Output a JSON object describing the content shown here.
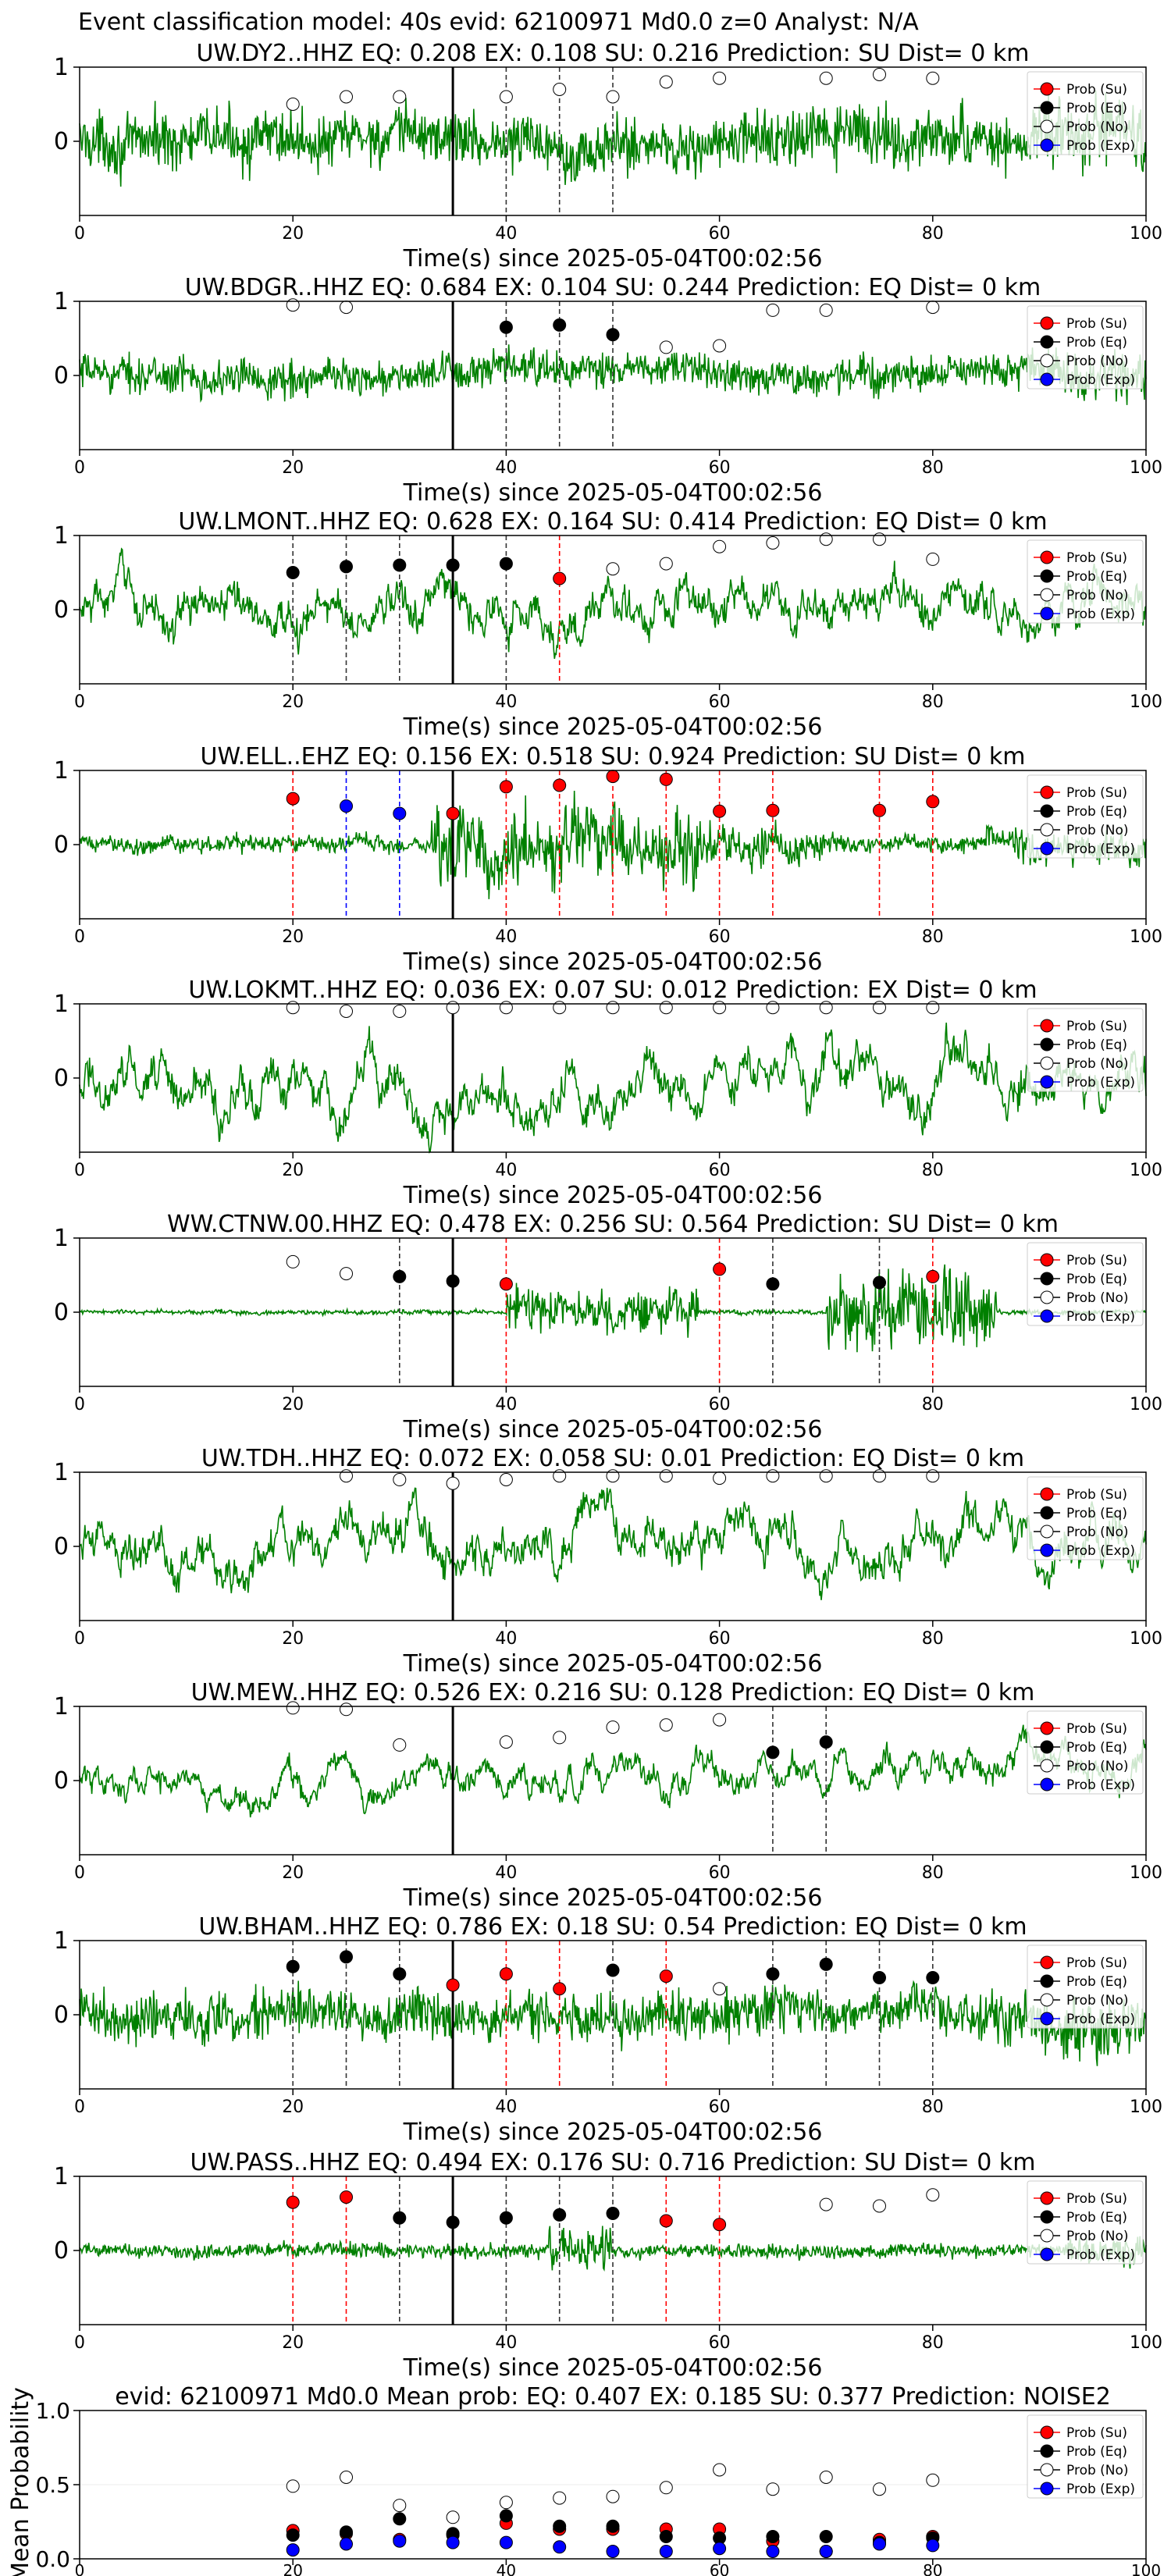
{
  "figure": {
    "suptitle": "Event classification model: 40s evid: 62100971 Md0.0 z=0 Analyst: N/A"
  },
  "legend_labels": [
    "Prob (Su)",
    "Prob (Eq)",
    "Prob (No)",
    "Prob (Exp)"
  ],
  "class_colors": {
    "su": "#ff0000",
    "eq": "#000000",
    "no": "#ffffff",
    "exp": "#0000ff"
  },
  "waveform_color": "#008000",
  "common": {
    "xlabel": "Time(s) since 2025-05-04T00:02:56",
    "xticks": [
      "0",
      "20",
      "40",
      "60",
      "80",
      "100"
    ],
    "yticks": [
      "0",
      "1"
    ],
    "xlim": [
      0,
      100
    ],
    "ylim": [
      -1,
      1
    ],
    "marker_times": [
      20,
      25,
      30,
      35,
      40,
      45,
      50,
      55,
      60,
      65,
      70,
      75,
      80
    ],
    "origin_time": 35
  },
  "chart_data": [
    {
      "type": "line",
      "title": "UW.DY2..HHZ   EQ: 0.208  EX: 0.108  SU: 0.216   Prediction: SU    Dist= 0 km",
      "amplitude": 0.7,
      "style": "noise",
      "probs": {
        "su": [],
        "eq": [],
        "exp": [],
        "no": [
          [
            20,
            0.5
          ],
          [
            25,
            0.6
          ],
          [
            30,
            0.6
          ],
          [
            40,
            0.6
          ],
          [
            45,
            0.7
          ],
          [
            50,
            0.6
          ],
          [
            55,
            0.8
          ],
          [
            60,
            0.85
          ],
          [
            70,
            0.85
          ],
          [
            75,
            0.9
          ],
          [
            80,
            0.85
          ]
        ]
      },
      "picks": [
        {
          "x": 40,
          "cls": "eq"
        },
        {
          "x": 45,
          "cls": "eq"
        },
        {
          "x": 50,
          "cls": "eq"
        }
      ]
    },
    {
      "type": "line",
      "title": "UW.BDGR..HHZ   EQ: 0.684  EX: 0.104  SU: 0.244   Prediction: EQ    Dist= 0 km",
      "amplitude": 0.45,
      "style": "noise",
      "probs": {
        "su": [],
        "eq": [
          [
            40,
            0.65
          ],
          [
            45,
            0.68
          ],
          [
            50,
            0.55
          ]
        ],
        "exp": [],
        "no": [
          [
            20,
            0.95
          ],
          [
            25,
            0.92
          ],
          [
            55,
            0.38
          ],
          [
            60,
            0.4
          ],
          [
            65,
            0.88
          ],
          [
            70,
            0.88
          ],
          [
            80,
            0.92
          ]
        ]
      },
      "picks": [
        {
          "x": 40,
          "cls": "eq"
        },
        {
          "x": 45,
          "cls": "eq"
        },
        {
          "x": 50,
          "cls": "eq"
        }
      ]
    },
    {
      "type": "line",
      "title": "UW.LMONT..HHZ   EQ: 0.628  EX: 0.164  SU: 0.414   Prediction: EQ    Dist= 0 km",
      "amplitude": 0.8,
      "style": "lowfreq",
      "probs": {
        "su": [
          [
            45,
            0.42
          ]
        ],
        "eq": [
          [
            20,
            0.5
          ],
          [
            25,
            0.58
          ],
          [
            30,
            0.6
          ],
          [
            35,
            0.6
          ],
          [
            40,
            0.62
          ]
        ],
        "exp": [],
        "no": [
          [
            50,
            0.55
          ],
          [
            55,
            0.62
          ],
          [
            60,
            0.85
          ],
          [
            65,
            0.9
          ],
          [
            70,
            0.95
          ],
          [
            75,
            0.95
          ],
          [
            80,
            0.68
          ]
        ]
      },
      "picks": [
        {
          "x": 20,
          "cls": "eq"
        },
        {
          "x": 25,
          "cls": "eq"
        },
        {
          "x": 30,
          "cls": "eq"
        },
        {
          "x": 40,
          "cls": "eq"
        },
        {
          "x": 45,
          "cls": "su"
        }
      ]
    },
    {
      "type": "line",
      "title": "UW.ELL..EHZ   EQ: 0.156  EX: 0.518  SU: 0.924   Prediction: SU    Dist= 0 km",
      "amplitude": 0.9,
      "style": "burst_mid",
      "probs": {
        "su": [
          [
            20,
            0.62
          ],
          [
            35,
            0.42
          ],
          [
            40,
            0.78
          ],
          [
            45,
            0.8
          ],
          [
            50,
            0.92
          ],
          [
            55,
            0.88
          ],
          [
            60,
            0.45
          ],
          [
            65,
            0.46
          ],
          [
            75,
            0.46
          ],
          [
            80,
            0.58
          ]
        ],
        "eq": [],
        "exp": [
          [
            25,
            0.52
          ],
          [
            30,
            0.42
          ]
        ],
        "no": []
      },
      "picks": [
        {
          "x": 20,
          "cls": "su"
        },
        {
          "x": 25,
          "cls": "exp"
        },
        {
          "x": 30,
          "cls": "exp"
        },
        {
          "x": 40,
          "cls": "su"
        },
        {
          "x": 45,
          "cls": "su"
        },
        {
          "x": 50,
          "cls": "su"
        },
        {
          "x": 55,
          "cls": "su"
        },
        {
          "x": 60,
          "cls": "su"
        },
        {
          "x": 65,
          "cls": "su"
        },
        {
          "x": 75,
          "cls": "su"
        },
        {
          "x": 80,
          "cls": "su"
        }
      ]
    },
    {
      "type": "line",
      "title": "UW.LOKMT..HHZ   EQ: 0.036  EX: 0.07  SU: 0.012   Prediction: EX    Dist= 0 km",
      "amplitude": 0.85,
      "style": "lowfreq",
      "probs": {
        "su": [],
        "eq": [],
        "exp": [],
        "no": [
          [
            20,
            0.95
          ],
          [
            25,
            0.9
          ],
          [
            30,
            0.9
          ],
          [
            35,
            0.95
          ],
          [
            40,
            0.95
          ],
          [
            45,
            0.95
          ],
          [
            50,
            0.95
          ],
          [
            55,
            0.95
          ],
          [
            60,
            0.95
          ],
          [
            65,
            0.95
          ],
          [
            70,
            0.95
          ],
          [
            75,
            0.95
          ],
          [
            80,
            0.95
          ]
        ]
      },
      "picks": []
    },
    {
      "type": "line",
      "title": "WW.CTNW.00.HHZ   EQ: 0.478  EX: 0.256  SU: 0.564   Prediction: SU    Dist= 0 km",
      "amplitude": 0.9,
      "style": "events",
      "probs": {
        "su": [
          [
            40,
            0.38
          ],
          [
            60,
            0.58
          ],
          [
            80,
            0.48
          ]
        ],
        "eq": [
          [
            30,
            0.48
          ],
          [
            35,
            0.42
          ],
          [
            65,
            0.38
          ],
          [
            75,
            0.4
          ]
        ],
        "exp": [],
        "no": [
          [
            20,
            0.68
          ],
          [
            25,
            0.52
          ]
        ]
      },
      "picks": [
        {
          "x": 30,
          "cls": "eq"
        },
        {
          "x": 40,
          "cls": "su"
        },
        {
          "x": 60,
          "cls": "su"
        },
        {
          "x": 65,
          "cls": "eq"
        },
        {
          "x": 75,
          "cls": "eq"
        },
        {
          "x": 80,
          "cls": "su"
        }
      ]
    },
    {
      "type": "line",
      "title": "UW.TDH..HHZ   EQ: 0.072  EX: 0.058  SU: 0.01   Prediction: EQ    Dist= 0 km",
      "amplitude": 0.8,
      "style": "lowfreq",
      "probs": {
        "su": [],
        "eq": [],
        "exp": [],
        "no": [
          [
            25,
            0.95
          ],
          [
            30,
            0.9
          ],
          [
            35,
            0.85
          ],
          [
            40,
            0.9
          ],
          [
            45,
            0.95
          ],
          [
            50,
            0.95
          ],
          [
            55,
            0.95
          ],
          [
            60,
            0.92
          ],
          [
            65,
            0.95
          ],
          [
            70,
            0.95
          ],
          [
            75,
            0.95
          ],
          [
            80,
            0.95
          ]
        ]
      },
      "picks": []
    },
    {
      "type": "line",
      "title": "UW.MEW..HHZ   EQ: 0.526  EX: 0.216  SU: 0.128   Prediction: EQ    Dist= 0 km",
      "amplitude": 0.55,
      "style": "lowfreq",
      "probs": {
        "su": [],
        "eq": [
          [
            65,
            0.38
          ],
          [
            70,
            0.52
          ]
        ],
        "exp": [],
        "no": [
          [
            20,
            0.98
          ],
          [
            25,
            0.96
          ],
          [
            30,
            0.48
          ],
          [
            40,
            0.52
          ],
          [
            45,
            0.58
          ],
          [
            50,
            0.72
          ],
          [
            55,
            0.75
          ],
          [
            60,
            0.82
          ]
        ]
      },
      "picks": [
        {
          "x": 65,
          "cls": "eq"
        },
        {
          "x": 70,
          "cls": "eq"
        }
      ]
    },
    {
      "type": "line",
      "title": "UW.BHAM..HHZ   EQ: 0.786  EX: 0.18  SU: 0.54   Prediction: EQ    Dist= 0 km",
      "amplitude": 0.6,
      "style": "noise",
      "probs": {
        "su": [
          [
            35,
            0.4
          ],
          [
            40,
            0.55
          ],
          [
            45,
            0.35
          ],
          [
            55,
            0.52
          ]
        ],
        "eq": [
          [
            20,
            0.65
          ],
          [
            25,
            0.78
          ],
          [
            30,
            0.55
          ],
          [
            50,
            0.6
          ],
          [
            65,
            0.55
          ],
          [
            70,
            0.68
          ],
          [
            75,
            0.5
          ],
          [
            80,
            0.5
          ]
        ],
        "exp": [],
        "no": [
          [
            60,
            0.35
          ]
        ]
      },
      "picks": [
        {
          "x": 20,
          "cls": "eq"
        },
        {
          "x": 25,
          "cls": "eq"
        },
        {
          "x": 30,
          "cls": "eq"
        },
        {
          "x": 40,
          "cls": "su"
        },
        {
          "x": 45,
          "cls": "su"
        },
        {
          "x": 50,
          "cls": "eq"
        },
        {
          "x": 55,
          "cls": "su"
        },
        {
          "x": 65,
          "cls": "eq"
        },
        {
          "x": 70,
          "cls": "eq"
        },
        {
          "x": 75,
          "cls": "eq"
        },
        {
          "x": 80,
          "cls": "eq"
        }
      ]
    },
    {
      "type": "line",
      "title": "UW.PASS..HHZ   EQ: 0.494  EX: 0.176  SU: 0.716   Prediction: SU    Dist= 0 km",
      "amplitude": 0.5,
      "style": "noise_burst",
      "probs": {
        "su": [
          [
            20,
            0.65
          ],
          [
            25,
            0.72
          ],
          [
            55,
            0.4
          ],
          [
            60,
            0.35
          ]
        ],
        "eq": [
          [
            30,
            0.44
          ],
          [
            35,
            0.38
          ],
          [
            40,
            0.44
          ],
          [
            45,
            0.48
          ],
          [
            50,
            0.5
          ]
        ],
        "exp": [],
        "no": [
          [
            70,
            0.62
          ],
          [
            75,
            0.6
          ],
          [
            80,
            0.75
          ]
        ]
      },
      "picks": [
        {
          "x": 20,
          "cls": "su"
        },
        {
          "x": 25,
          "cls": "su"
        },
        {
          "x": 30,
          "cls": "eq"
        },
        {
          "x": 40,
          "cls": "eq"
        },
        {
          "x": 45,
          "cls": "eq"
        },
        {
          "x": 50,
          "cls": "eq"
        },
        {
          "x": 55,
          "cls": "su"
        },
        {
          "x": 60,
          "cls": "su"
        }
      ]
    },
    {
      "type": "scatter",
      "title": "evid: 62100971  Md0.0   Mean prob:   EQ: 0.407  EX: 0.185  SU: 0.377   Prediction: NOISE2",
      "ylabel": "Mean Probability",
      "xlim": [
        0,
        100
      ],
      "ylim": [
        0,
        1
      ],
      "xticks": [
        "0",
        "20",
        "40",
        "60",
        "80",
        "100"
      ],
      "yticks": [
        "0.0",
        "0.5",
        "1.0"
      ],
      "x": [
        20,
        25,
        30,
        35,
        40,
        45,
        50,
        55,
        60,
        65,
        70,
        75,
        80
      ],
      "series": [
        {
          "name": "Prob (Su)",
          "cls": "su",
          "values": [
            0.19,
            0.17,
            0.13,
            0.16,
            0.24,
            0.2,
            0.2,
            0.2,
            0.2,
            0.12,
            0.05,
            0.13,
            0.15
          ]
        },
        {
          "name": "Prob (Eq)",
          "cls": "eq",
          "values": [
            0.16,
            0.18,
            0.27,
            0.17,
            0.29,
            0.22,
            0.22,
            0.15,
            0.14,
            0.15,
            0.15,
            0.11,
            0.14
          ]
        },
        {
          "name": "Prob (No)",
          "cls": "no",
          "values": [
            0.49,
            0.55,
            0.36,
            0.28,
            0.38,
            0.41,
            0.42,
            0.48,
            0.6,
            0.47,
            0.55,
            0.47,
            0.53
          ]
        },
        {
          "name": "Prob (Exp)",
          "cls": "exp",
          "values": [
            0.06,
            0.1,
            0.12,
            0.11,
            0.11,
            0.08,
            0.05,
            0.05,
            0.07,
            0.05,
            0.05,
            0.1,
            0.09
          ]
        }
      ]
    }
  ]
}
